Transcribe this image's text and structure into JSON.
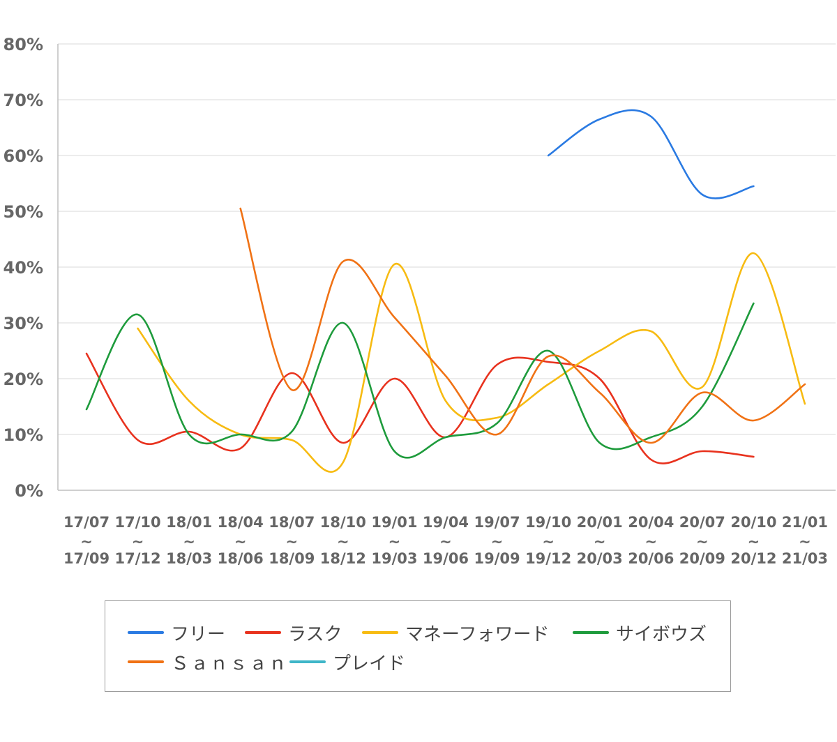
{
  "chart_data": {
    "type": "line",
    "title": "",
    "xlabel": "",
    "ylabel": "",
    "ylim": [
      0,
      80
    ],
    "y_ticks": [
      "0%",
      "10%",
      "20%",
      "30%",
      "40%",
      "50%",
      "60%",
      "70%",
      "80%"
    ],
    "grid": true,
    "legend_position": "bottom",
    "categories": [
      {
        "from": "17/07",
        "sep": "~",
        "to": "17/09"
      },
      {
        "from": "17/10",
        "sep": "~",
        "to": "17/12"
      },
      {
        "from": "18/01",
        "sep": "~",
        "to": "18/03"
      },
      {
        "from": "18/04",
        "sep": "~",
        "to": "18/06"
      },
      {
        "from": "18/07",
        "sep": "~",
        "to": "18/09"
      },
      {
        "from": "18/10",
        "sep": "~",
        "to": "18/12"
      },
      {
        "from": "19/01",
        "sep": "~",
        "to": "19/03"
      },
      {
        "from": "19/04",
        "sep": "~",
        "to": "19/06"
      },
      {
        "from": "19/07",
        "sep": "~",
        "to": "19/09"
      },
      {
        "from": "19/10",
        "sep": "~",
        "to": "19/12"
      },
      {
        "from": "20/01",
        "sep": "~",
        "to": "20/03"
      },
      {
        "from": "20/04",
        "sep": "~",
        "to": "20/06"
      },
      {
        "from": "20/07",
        "sep": "~",
        "to": "20/09"
      },
      {
        "from": "20/10",
        "sep": "~",
        "to": "20/12"
      },
      {
        "from": "21/01",
        "sep": "~",
        "to": "21/03"
      }
    ],
    "series": [
      {
        "name": "フリー",
        "color": "#2a7ae2",
        "values": [
          null,
          null,
          null,
          null,
          null,
          null,
          null,
          null,
          null,
          60,
          66.5,
          67,
          53,
          54.5,
          null
        ]
      },
      {
        "name": "ラスク",
        "color": "#e8321e",
        "values": [
          24.5,
          9,
          10.5,
          7.5,
          21,
          8.5,
          20,
          9.5,
          22.5,
          23,
          20,
          5.5,
          7,
          6,
          null
        ]
      },
      {
        "name": "マネーフォワード",
        "color": "#f7bb12",
        "values": [
          null,
          29,
          16,
          10,
          9,
          5,
          40.5,
          16,
          13,
          19,
          25,
          28.5,
          18.5,
          42.5,
          15.5
        ]
      },
      {
        "name": "サイボウズ",
        "color": "#1e9b3c",
        "values": [
          14.5,
          31.5,
          10,
          10,
          10.5,
          30,
          7,
          9.5,
          12,
          25,
          8.5,
          9.5,
          15,
          33.5,
          null
        ]
      },
      {
        "name": "Ｓａｎｓａｎ",
        "color": "#f07215",
        "values": [
          null,
          null,
          null,
          50.5,
          18,
          41,
          31,
          20.5,
          10,
          24,
          17.5,
          8.5,
          17.5,
          12.5,
          19
        ]
      },
      {
        "name": "プレイド",
        "color": "#3fb6c8",
        "values": [
          null,
          null,
          null,
          null,
          null,
          null,
          null,
          null,
          null,
          null,
          null,
          null,
          null,
          null,
          null
        ]
      }
    ]
  }
}
